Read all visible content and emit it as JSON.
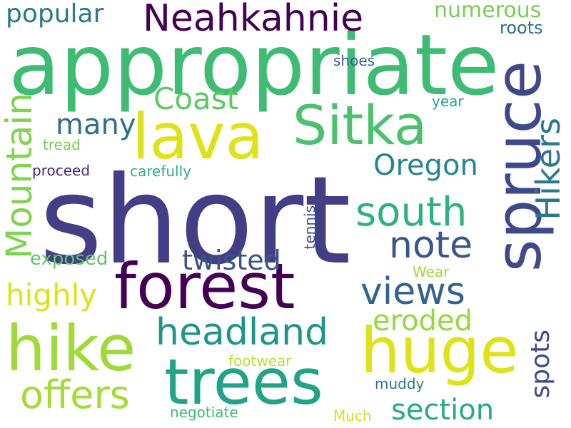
{
  "word_cloud": {
    "background": "#ffffff",
    "words": [
      {
        "text": "short",
        "color": "#433e85",
        "orientation": "horizontal"
      },
      {
        "text": "appropriate",
        "color": "#3fbc73",
        "orientation": "horizontal"
      },
      {
        "text": "forest",
        "color": "#440154",
        "orientation": "horizontal"
      },
      {
        "text": "huge",
        "color": "#dde318",
        "orientation": "horizontal"
      },
      {
        "text": "trees",
        "color": "#20a386",
        "orientation": "horizontal"
      },
      {
        "text": "hike",
        "color": "#a0da39",
        "orientation": "horizontal"
      },
      {
        "text": "spruce",
        "color": "#3e4989",
        "orientation": "vertical-up"
      },
      {
        "text": "lava",
        "color": "#dde318",
        "orientation": "horizontal"
      },
      {
        "text": "Sitka",
        "color": "#4ac16d",
        "orientation": "horizontal"
      },
      {
        "text": "headland",
        "color": "#1f948c",
        "orientation": "horizontal"
      },
      {
        "text": "south",
        "color": "#2db27d",
        "orientation": "horizontal"
      },
      {
        "text": "Neahkahnie",
        "color": "#440154",
        "orientation": "horizontal"
      },
      {
        "text": "views",
        "color": "#34618d",
        "orientation": "horizontal"
      },
      {
        "text": "offers",
        "color": "#a5db36",
        "orientation": "horizontal"
      },
      {
        "text": "note",
        "color": "#39568c",
        "orientation": "horizontal"
      },
      {
        "text": "Hikers",
        "color": "#2a788e",
        "orientation": "vertical-up"
      },
      {
        "text": "Mountain",
        "color": "#7fd34e",
        "orientation": "vertical-up"
      },
      {
        "text": "Coast",
        "color": "#5ec962",
        "orientation": "horizontal"
      },
      {
        "text": "highly",
        "color": "#dde318",
        "orientation": "horizontal"
      },
      {
        "text": "Oregon",
        "color": "#24868e",
        "orientation": "horizontal"
      },
      {
        "text": "section",
        "color": "#25ab82",
        "orientation": "horizontal"
      },
      {
        "text": "eroded",
        "color": "#95d840",
        "orientation": "horizontal"
      },
      {
        "text": "many",
        "color": "#2e6e8e",
        "orientation": "horizontal"
      },
      {
        "text": "twisted",
        "color": "#3b528b",
        "orientation": "horizontal"
      },
      {
        "text": "popular",
        "color": "#2a788e",
        "orientation": "horizontal"
      },
      {
        "text": "spots",
        "color": "#3e4989",
        "orientation": "vertical-up"
      },
      {
        "text": "numerous",
        "color": "#75d054",
        "orientation": "horizontal"
      },
      {
        "text": "exposed",
        "color": "#5ec962",
        "orientation": "horizontal"
      },
      {
        "text": "roots",
        "color": "#2c718e",
        "orientation": "horizontal"
      },
      {
        "text": "shoes",
        "color": "#355f8d",
        "orientation": "horizontal"
      },
      {
        "text": "proceed",
        "color": "#482677",
        "orientation": "horizontal"
      },
      {
        "text": "carefully",
        "color": "#2db27d",
        "orientation": "horizontal"
      },
      {
        "text": "footwear",
        "color": "#b5de2b",
        "orientation": "horizontal"
      },
      {
        "text": "negotiate",
        "color": "#3dbc74",
        "orientation": "horizontal"
      },
      {
        "text": "muddy",
        "color": "#2a788e",
        "orientation": "horizontal"
      },
      {
        "text": "year",
        "color": "#20a386",
        "orientation": "horizontal"
      },
      {
        "text": "tread",
        "color": "#75d054",
        "orientation": "horizontal"
      },
      {
        "text": "Wear",
        "color": "#a0da39",
        "orientation": "horizontal"
      },
      {
        "text": "Much",
        "color": "#d0e11c",
        "orientation": "horizontal"
      },
      {
        "text": "tennis",
        "color": "#3b528b",
        "orientation": "vertical-up"
      }
    ]
  }
}
